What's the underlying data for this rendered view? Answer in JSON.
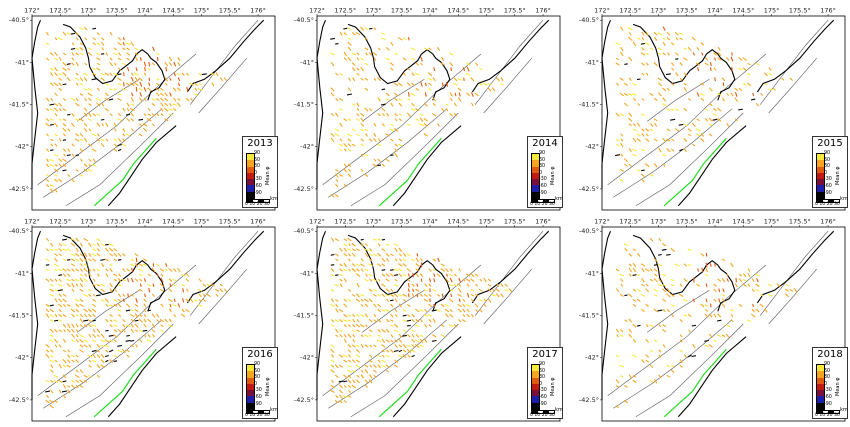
{
  "figure": {
    "lon_labels": [
      "172°",
      "172.5°",
      "173°",
      "173.5°",
      "174°",
      "174.5°",
      "175°",
      "175.5°",
      "176°"
    ],
    "lat_labels": [
      "-40.5°",
      "-41°",
      "-41.5°",
      "-42°",
      "-42.5°"
    ],
    "lon_range": [
      172.0,
      176.3
    ],
    "lat_range": [
      -42.75,
      -40.45
    ],
    "colorbar": {
      "title": "Mean φ",
      "tick_labels": [
        "90",
        "60",
        "30",
        "0",
        "-30",
        "-60",
        "-90"
      ],
      "colors": [
        "#f7e839",
        "#f5a51f",
        "#e25a12",
        "#c21a12",
        "#7a0f3a",
        "#1e1ea8",
        "#050505"
      ]
    },
    "scale_bar": {
      "unit": "km",
      "labels": "0 10 20 30"
    },
    "symbol_colors": {
      "coast": "#000000",
      "faults": "#555555",
      "rupture": "#22dd22",
      "bar_typical": "#b0ad5a"
    }
  },
  "panels": [
    {
      "year": "2013",
      "density": 0.85
    },
    {
      "year": "2014",
      "density": 0.55
    },
    {
      "year": "2015",
      "density": 0.5
    },
    {
      "year": "2016",
      "density": 1.0
    },
    {
      "year": "2017",
      "density": 1.0
    },
    {
      "year": "2018",
      "density": 0.45
    }
  ]
}
